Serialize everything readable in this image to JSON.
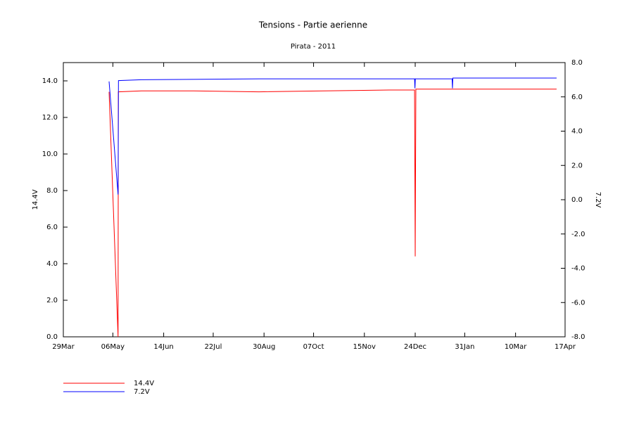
{
  "chart_data": {
    "type": "line",
    "title": "Tensions - Partie aerienne",
    "subtitle": "Pirata - 2011",
    "y_label": "14.4V",
    "y2_label": "7.2V",
    "xlim": [
      0,
      385
    ],
    "xticks": [
      {
        "value": 0,
        "label": "29Mar"
      },
      {
        "value": 38,
        "label": "06May"
      },
      {
        "value": 77,
        "label": "14Jun"
      },
      {
        "value": 115,
        "label": "22Jul"
      },
      {
        "value": 154,
        "label": "30Aug"
      },
      {
        "value": 192,
        "label": "07Oct"
      },
      {
        "value": 231,
        "label": "15Nov"
      },
      {
        "value": 270,
        "label": "24Dec"
      },
      {
        "value": 308,
        "label": "31Jan"
      },
      {
        "value": 347,
        "label": "10Mar"
      },
      {
        "value": 385,
        "label": "17Apr"
      }
    ],
    "ylim": [
      0,
      15
    ],
    "yticks": [
      {
        "value": 0,
        "label": "0.0"
      },
      {
        "value": 2,
        "label": "2.0"
      },
      {
        "value": 4,
        "label": "4.0"
      },
      {
        "value": 6,
        "label": "6.0"
      },
      {
        "value": 8,
        "label": "8.0"
      },
      {
        "value": 10,
        "label": "10.0"
      },
      {
        "value": 12,
        "label": "12.0"
      },
      {
        "value": 14,
        "label": "14.0"
      }
    ],
    "y2lim": [
      -8,
      8
    ],
    "y2ticks": [
      {
        "value": -8,
        "label": "-8.0"
      },
      {
        "value": -6,
        "label": "-6.0"
      },
      {
        "value": -4,
        "label": "-4.0"
      },
      {
        "value": -2,
        "label": "-2.0"
      },
      {
        "value": 0,
        "label": "0.0"
      },
      {
        "value": 2,
        "label": "2.0"
      },
      {
        "value": 4,
        "label": "4.0"
      },
      {
        "value": 6,
        "label": "6.0"
      },
      {
        "value": 8,
        "label": "8.0"
      }
    ],
    "legend": "bottom-left",
    "series": [
      {
        "name": "14.4V",
        "color": "#ff0000",
        "axis": "y",
        "x": [
          35.1,
          42.0,
          42.2,
          60,
          100,
          150,
          200,
          250,
          269.5,
          270,
          270.5,
          300,
          340,
          378.5
        ],
        "values": [
          13.4,
          0,
          13.4,
          13.45,
          13.45,
          13.4,
          13.45,
          13.5,
          13.5,
          4.4,
          13.55,
          13.55,
          13.55,
          13.55
        ]
      },
      {
        "name": "7.2V",
        "color": "#0000ff",
        "axis": "y2",
        "x": [
          35.1,
          42.0,
          42.3,
          60,
          150,
          269.5,
          269.8,
          270.1,
          298.3,
          298.6,
          298.9,
          378.5
        ],
        "values": [
          6.9,
          0.3,
          6.95,
          7.0,
          7.05,
          7.05,
          6.5,
          7.05,
          7.05,
          6.5,
          7.1,
          7.1
        ]
      }
    ]
  }
}
